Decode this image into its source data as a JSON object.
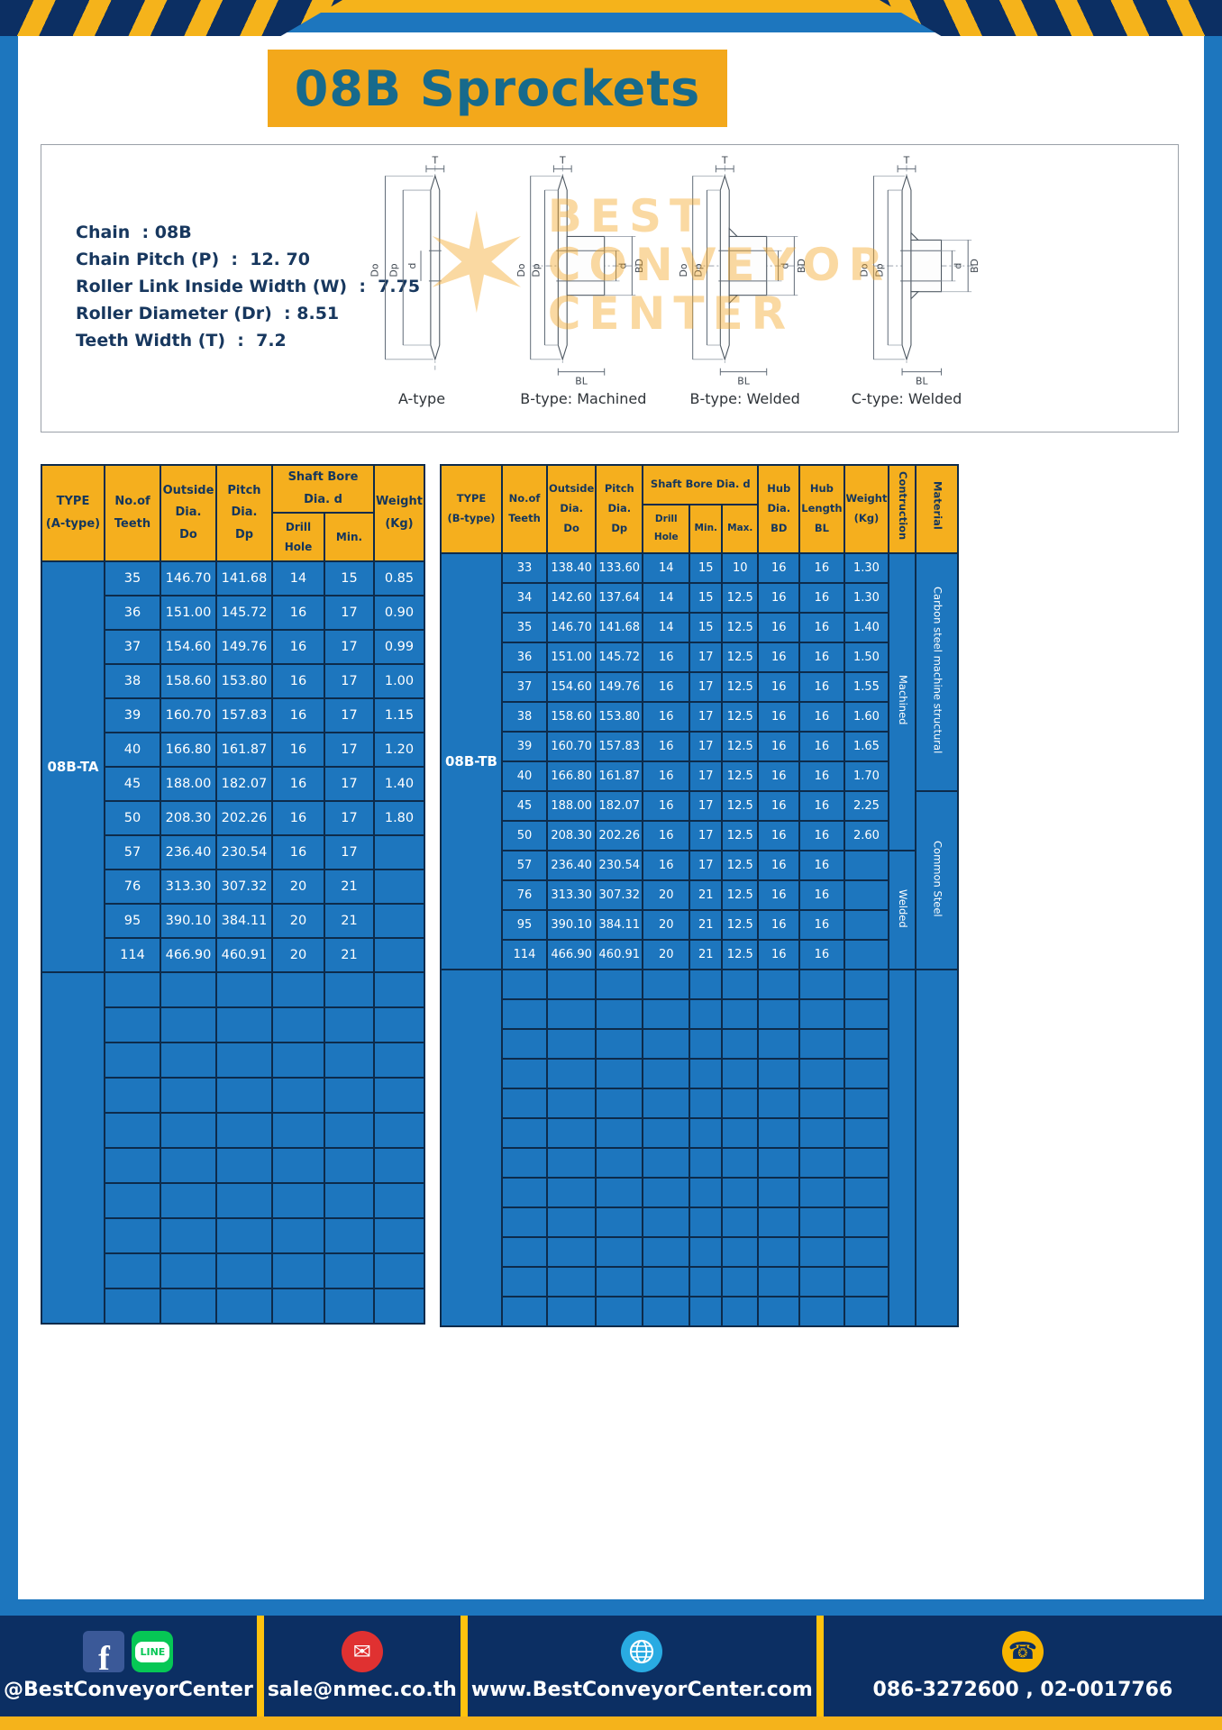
{
  "page": {
    "title": "08B Sprockets"
  },
  "colors": {
    "frame_blue": "#1D76BE",
    "banner_yellow": "#F3A81B",
    "table_header_yellow": "#F5AF1E",
    "table_body_blue": "#1D76BE",
    "table_border_navy": "#0D2B4B",
    "title_teal": "#176A8C",
    "spec_navy": "#17375E",
    "footer_navy": "#0C2F63",
    "separator_yellow": "#FFC20E",
    "watermark_orange": "#F5A623"
  },
  "specs": {
    "lines": [
      "Chain  : 08B",
      "Chain Pitch (P)  :  12. 70",
      "Roller Link Inside Width (W)  :  7.75",
      "Roller Diameter (Dr)  : 8.51",
      "Teeth Width (T)  :  7.2"
    ]
  },
  "drawings": {
    "watermark": [
      "BEST",
      "CONVEYOR",
      "CENTER"
    ],
    "watermark_star": "✶",
    "items": [
      {
        "caption": "A-type",
        "labels": {
          "t": "T",
          "do": "Do",
          "dp": "Dp",
          "d": "d"
        }
      },
      {
        "caption": "B-type: Machined",
        "labels": {
          "t": "T",
          "do": "Do",
          "dp": "Dp",
          "d": "d",
          "bd": "BD",
          "bl": "BL"
        }
      },
      {
        "caption": "B-type: Welded",
        "labels": {
          "t": "T",
          "do": "Do",
          "dp": "Dp",
          "d": "d",
          "bd": "BD",
          "bl": "BL"
        }
      },
      {
        "caption": "C-type: Welded",
        "labels": {
          "t": "T",
          "do": "Do",
          "dp": "Dp",
          "d": "d",
          "bd": "BD",
          "bl": "BL"
        }
      }
    ]
  },
  "table_a": {
    "headers": {
      "type": "TYPE\n(A-type)",
      "teeth": "No.of\nTeeth",
      "outside": "Outside\nDia.\nDo",
      "pitch": "Pitch Dia.\nDp",
      "shaft_bore": "Shaft Bore Dia. d",
      "drill": "Drill Hole",
      "min": "Min.",
      "weight": "Weight\n(Kg)"
    },
    "type_value": "08B-TA",
    "rows": [
      [
        "35",
        "146.70",
        "141.68",
        "14",
        "15",
        "0.85"
      ],
      [
        "36",
        "151.00",
        "145.72",
        "16",
        "17",
        "0.90"
      ],
      [
        "37",
        "154.60",
        "149.76",
        "16",
        "17",
        "0.99"
      ],
      [
        "38",
        "158.60",
        "153.80",
        "16",
        "17",
        "1.00"
      ],
      [
        "39",
        "160.70",
        "157.83",
        "16",
        "17",
        "1.15"
      ],
      [
        "40",
        "166.80",
        "161.87",
        "16",
        "17",
        "1.20"
      ],
      [
        "45",
        "188.00",
        "182.07",
        "16",
        "17",
        "1.40"
      ],
      [
        "50",
        "208.30",
        "202.26",
        "16",
        "17",
        "1.80"
      ],
      [
        "57",
        "236.40",
        "230.54",
        "16",
        "17",
        ""
      ],
      [
        "76",
        "313.30",
        "307.32",
        "20",
        "21",
        ""
      ],
      [
        "95",
        "390.10",
        "384.11",
        "20",
        "21",
        ""
      ],
      [
        "114",
        "466.90",
        "460.91",
        "20",
        "21",
        ""
      ]
    ],
    "empty_rows": 10
  },
  "table_b": {
    "headers": {
      "type": "TYPE\n(B-type)",
      "teeth": "No.of\nTeeth",
      "outside": "Outside\nDia.\nDo",
      "pitch": "Pitch Dia.\nDp",
      "shaft_bore": "Shaft Bore Dia. d",
      "drill": "Drill Hole",
      "min": "Min.",
      "max": "Max.",
      "bd": "Hub Dia.\nBD",
      "bl": "Hub\nLength\nBL",
      "weight": "Weight\n(Kg)",
      "construction": "Contruction",
      "material": "Material"
    },
    "type_value": "08B-TB",
    "rows": [
      [
        "33",
        "138.40",
        "133.60",
        "14",
        "15",
        "10",
        "16",
        "16",
        "1.30"
      ],
      [
        "34",
        "142.60",
        "137.64",
        "14",
        "15",
        "12.5",
        "16",
        "16",
        "1.30"
      ],
      [
        "35",
        "146.70",
        "141.68",
        "14",
        "15",
        "12.5",
        "16",
        "16",
        "1.40"
      ],
      [
        "36",
        "151.00",
        "145.72",
        "16",
        "17",
        "12.5",
        "16",
        "16",
        "1.50"
      ],
      [
        "37",
        "154.60",
        "149.76",
        "16",
        "17",
        "12.5",
        "16",
        "16",
        "1.55"
      ],
      [
        "38",
        "158.60",
        "153.80",
        "16",
        "17",
        "12.5",
        "16",
        "16",
        "1.60"
      ],
      [
        "39",
        "160.70",
        "157.83",
        "16",
        "17",
        "12.5",
        "16",
        "16",
        "1.65"
      ],
      [
        "40",
        "166.80",
        "161.87",
        "16",
        "17",
        "12.5",
        "16",
        "16",
        "1.70"
      ],
      [
        "45",
        "188.00",
        "182.07",
        "16",
        "17",
        "12.5",
        "16",
        "16",
        "2.25"
      ],
      [
        "50",
        "208.30",
        "202.26",
        "16",
        "17",
        "12.5",
        "16",
        "16",
        "2.60"
      ],
      [
        "57",
        "236.40",
        "230.54",
        "16",
        "17",
        "12.5",
        "16",
        "16",
        ""
      ],
      [
        "76",
        "313.30",
        "307.32",
        "20",
        "21",
        "12.5",
        "16",
        "16",
        ""
      ],
      [
        "95",
        "390.10",
        "384.11",
        "20",
        "21",
        "12.5",
        "16",
        "16",
        ""
      ],
      [
        "114",
        "466.90",
        "460.91",
        "20",
        "21",
        "12.5",
        "16",
        "16",
        ""
      ]
    ],
    "construction": [
      {
        "label": "Machined",
        "start": 0,
        "span": 10
      },
      {
        "label": "Welded",
        "start": 10,
        "span": 4
      }
    ],
    "material": [
      {
        "label": "Carbon steel  machine structural",
        "start": 0,
        "span": 8
      },
      {
        "label": "Common  Steel",
        "start": 8,
        "span": 6
      }
    ],
    "empty_rows": 12
  },
  "footer": {
    "handle": "@BestConveyorCenter",
    "email": "sale@nmec.co.th",
    "website": "www.BestConveyorCenter.com",
    "phone": "086-3272600 , 02-0017766"
  },
  "icons": {
    "facebook": "f",
    "line": "LINE",
    "email": "✉",
    "phone": "☎"
  }
}
